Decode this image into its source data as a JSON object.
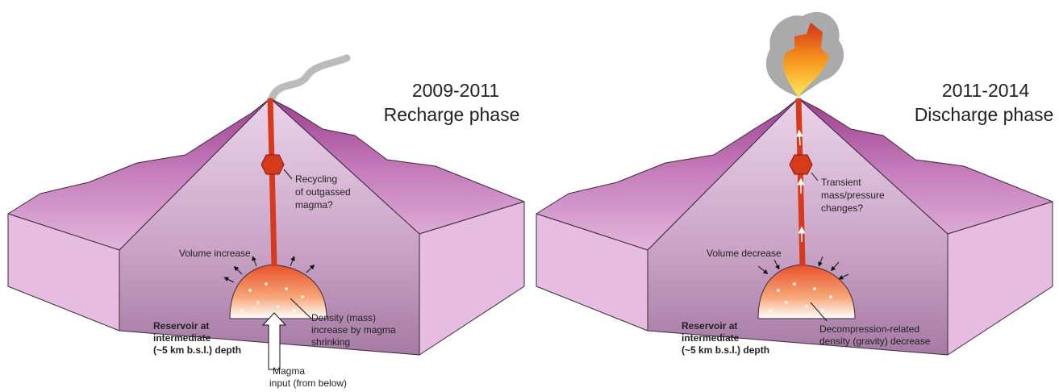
{
  "panels": [
    {
      "period": "2009-2011",
      "phase": "Recharge phase",
      "conduit_label": [
        "Recycling",
        "of outgassed",
        "magma?"
      ],
      "volume_label": "Volume increase",
      "reservoir_label": [
        "Reservoir at",
        "intermediate",
        "(~5 km b.s.l.) depth"
      ],
      "density_label": [
        "Density (mass)",
        "increase by magma",
        "shrinking"
      ],
      "input_label": [
        "Magma",
        "input (from below)"
      ]
    },
    {
      "period": "2011-2014",
      "phase": "Discharge phase",
      "conduit_label": [
        "Transient",
        "mass/pressure",
        "changes?"
      ],
      "volume_label": "Volume decrease",
      "reservoir_label": [
        "Reservoir at",
        "intermediate",
        "(~5 km b.s.l.) depth"
      ],
      "density_label": [
        "Decompression-related",
        "density (gravity) decrease"
      ]
    }
  ]
}
